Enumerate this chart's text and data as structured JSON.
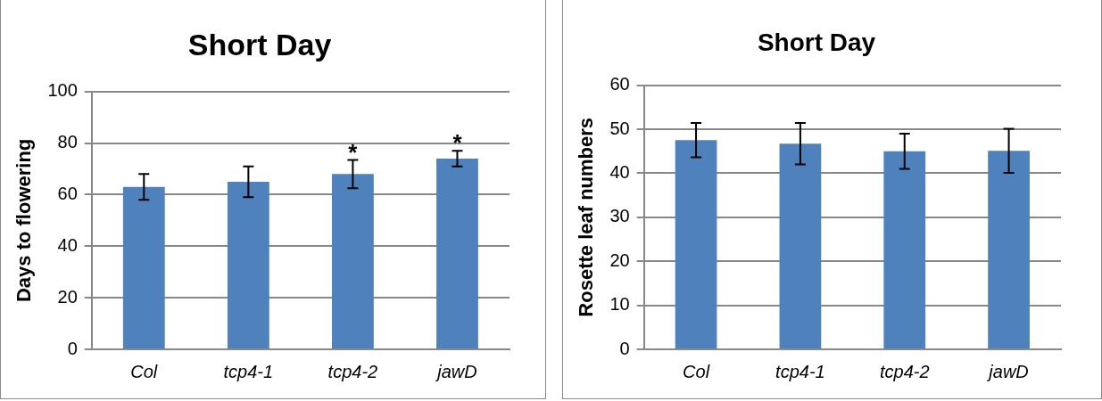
{
  "chart_data": [
    {
      "type": "bar",
      "title": "Short Day",
      "ylabel": "Days to flowering",
      "categories": [
        "Col",
        "tcp4-1",
        "tcp4-2",
        "jawD"
      ],
      "values": [
        63,
        65,
        68,
        74
      ],
      "errors": [
        5,
        6,
        5.5,
        3
      ],
      "color": "#4f81bd",
      "ylim": [
        0,
        100
      ],
      "yticks": [
        0,
        20,
        40,
        60,
        80,
        100
      ],
      "grid": "y",
      "annotations": [
        {
          "text": "*",
          "x": "tcp4-2",
          "y": 73.5
        },
        {
          "text": "*",
          "x": "jawD",
          "y": 77
        }
      ]
    },
    {
      "type": "bar",
      "title": "Short Day",
      "ylabel": "Rosette leaf numbers",
      "categories": [
        "Col",
        "tcp4-1",
        "tcp4-2",
        "jawD"
      ],
      "values": [
        47.5,
        46.7,
        45,
        45.1
      ],
      "errors": [
        3.9,
        4.7,
        4,
        5
      ],
      "color": "#4f81bd",
      "ylim": [
        0,
        60
      ],
      "yticks": [
        0,
        10,
        20,
        30,
        40,
        50,
        60
      ],
      "grid": "y"
    }
  ]
}
